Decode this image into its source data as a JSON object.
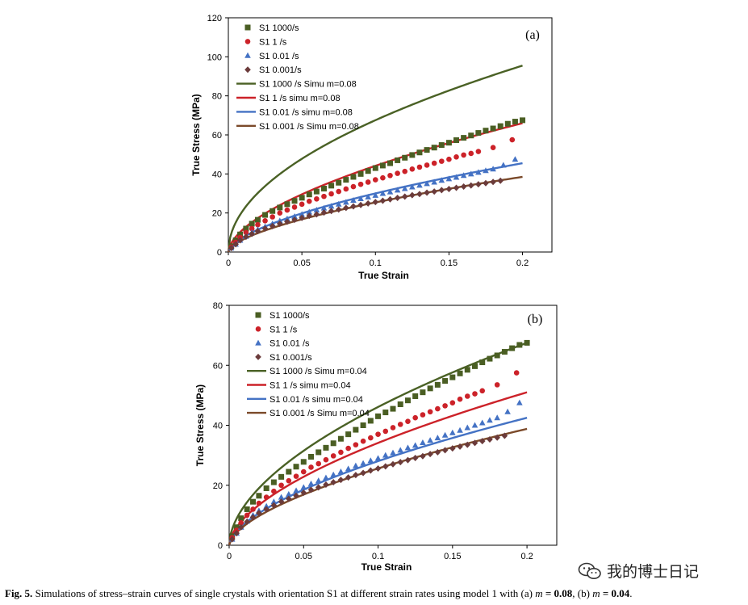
{
  "figure": {
    "caption_label": "Fig. 5.",
    "caption_text": "Simulations of stress–strain curves of single crystals with orientation S1 at different strain rates using model 1 with (a) ",
    "caption_m": "m",
    "caption_eq_a": " = 0.08",
    "caption_mid": ", (b) ",
    "caption_eq_b": " = 0.04",
    "caption_end": ".",
    "watermark": "我的博士日记"
  },
  "colors": {
    "s1000": "#4a5e23",
    "s1": "#cc2229",
    "s001": "#4472c4",
    "s0001": "#6b3b3b",
    "sim1000": "#4a6125",
    "sim1": "#cc2229",
    "sim001": "#4472c4",
    "sim0001": "#7b4a2a"
  },
  "chart_data": [
    {
      "type": "scatter",
      "panel_label": "(a)",
      "xlabel": "True Strain",
      "ylabel": "True Stress (MPa)",
      "xlim": [
        0,
        0.22
      ],
      "ylim": [
        0,
        120
      ],
      "xticks": [
        0,
        0.05,
        0.1,
        0.15,
        0.2
      ],
      "xtick_labels": [
        "0",
        "0.05",
        "0.1",
        "0.15",
        "0.2"
      ],
      "yticks": [
        0,
        20,
        40,
        60,
        80,
        100,
        120
      ],
      "ytick_labels": [
        "0",
        "20",
        "40",
        "60",
        "80",
        "100",
        "120"
      ],
      "legend_position": "top-left",
      "series": [
        {
          "name": "S1 1000/s",
          "kind": "marker",
          "marker": "square",
          "color_key": "s1000",
          "x": [
            0.002,
            0.005,
            0.008,
            0.012,
            0.016,
            0.02,
            0.025,
            0.03,
            0.035,
            0.04,
            0.045,
            0.05,
            0.055,
            0.06,
            0.065,
            0.07,
            0.075,
            0.08,
            0.085,
            0.09,
            0.095,
            0.1,
            0.105,
            0.11,
            0.115,
            0.12,
            0.125,
            0.13,
            0.135,
            0.14,
            0.145,
            0.15,
            0.155,
            0.16,
            0.165,
            0.17,
            0.175,
            0.18,
            0.185,
            0.19,
            0.195,
            0.2
          ],
          "y": [
            3,
            6,
            9,
            12,
            14.5,
            16.5,
            19,
            21,
            22.8,
            24.5,
            26.2,
            27.8,
            29.5,
            31,
            32.5,
            34,
            35.5,
            37,
            38.5,
            40,
            41.5,
            43,
            44.3,
            45.5,
            47,
            48.3,
            49.7,
            51,
            52.3,
            53.5,
            54.8,
            56,
            57.3,
            58.5,
            59.7,
            61,
            62.2,
            63.3,
            64.5,
            65.7,
            66.8,
            67.5
          ]
        },
        {
          "name": "S1 1 /s",
          "kind": "marker",
          "marker": "circle",
          "color_key": "s1",
          "x": [
            0.002,
            0.005,
            0.008,
            0.012,
            0.016,
            0.02,
            0.025,
            0.03,
            0.035,
            0.04,
            0.045,
            0.05,
            0.055,
            0.06,
            0.065,
            0.07,
            0.075,
            0.08,
            0.085,
            0.09,
            0.095,
            0.1,
            0.105,
            0.11,
            0.115,
            0.12,
            0.125,
            0.13,
            0.135,
            0.14,
            0.145,
            0.15,
            0.155,
            0.16,
            0.165,
            0.17,
            0.18,
            0.193
          ],
          "y": [
            2.5,
            5,
            7.5,
            10,
            12,
            14,
            16,
            18,
            20,
            21.5,
            23,
            24.5,
            26,
            27.2,
            28.5,
            29.8,
            31,
            32.3,
            33.5,
            34.7,
            35.8,
            37,
            38,
            39.2,
            40.3,
            41.3,
            42.5,
            43.5,
            44.5,
            45.5,
            46.5,
            47.5,
            48.7,
            49.7,
            50.5,
            51.5,
            53.5,
            57.5
          ]
        },
        {
          "name": "S1 0.01 /s",
          "kind": "marker",
          "marker": "triangle",
          "color_key": "s001",
          "x": [
            0.002,
            0.005,
            0.008,
            0.012,
            0.016,
            0.02,
            0.025,
            0.03,
            0.035,
            0.04,
            0.045,
            0.05,
            0.055,
            0.06,
            0.065,
            0.07,
            0.075,
            0.08,
            0.085,
            0.09,
            0.095,
            0.1,
            0.105,
            0.11,
            0.115,
            0.12,
            0.125,
            0.13,
            0.135,
            0.14,
            0.145,
            0.15,
            0.155,
            0.16,
            0.165,
            0.17,
            0.175,
            0.18,
            0.187,
            0.195
          ],
          "y": [
            2,
            4,
            6,
            8,
            10,
            11.5,
            13,
            14.5,
            16,
            17,
            18.2,
            19.3,
            20.5,
            21.5,
            22.5,
            23.5,
            24.5,
            25.5,
            26.5,
            27.3,
            28.2,
            29,
            30,
            30.8,
            31.7,
            32.5,
            33.3,
            34.2,
            35,
            35.8,
            36.7,
            37.5,
            38.3,
            39.2,
            40,
            40.8,
            41.7,
            42.5,
            44.5,
            47.5
          ]
        },
        {
          "name": "S1 0.001/s",
          "kind": "marker",
          "marker": "diamond",
          "color_key": "s0001",
          "x": [
            0.002,
            0.005,
            0.008,
            0.012,
            0.016,
            0.02,
            0.025,
            0.03,
            0.035,
            0.04,
            0.045,
            0.05,
            0.055,
            0.06,
            0.065,
            0.07,
            0.075,
            0.08,
            0.085,
            0.09,
            0.095,
            0.1,
            0.105,
            0.11,
            0.115,
            0.12,
            0.125,
            0.13,
            0.135,
            0.14,
            0.145,
            0.15,
            0.155,
            0.16,
            0.165,
            0.17,
            0.175,
            0.18,
            0.185
          ],
          "y": [
            2,
            4,
            6,
            7.8,
            9.3,
            10.7,
            12,
            13.3,
            14.5,
            15.5,
            16.5,
            17.5,
            18.5,
            19.3,
            20.2,
            21,
            21.8,
            22.6,
            23.4,
            24.1,
            24.9,
            25.6,
            26.3,
            27,
            27.7,
            28.4,
            29.1,
            29.7,
            30.4,
            31,
            31.7,
            32.3,
            32.9,
            33.5,
            34.1,
            34.7,
            35.3,
            35.9,
            36.5
          ]
        },
        {
          "name": "S1 1000 /s Simu m=0.08",
          "kind": "line",
          "color_key": "sim1000",
          "xmax": 0.2,
          "y_end": 95.5,
          "n": 0.5
        },
        {
          "name": "S1 1 /s simu m=0.08",
          "kind": "line",
          "color_key": "sim1",
          "xmax": 0.2,
          "y_end": 66.0,
          "n": 0.58
        },
        {
          "name": "S1 0.01 /s simu m=0.08",
          "kind": "line",
          "color_key": "sim001",
          "xmax": 0.2,
          "y_end": 45.5,
          "n": 0.6
        },
        {
          "name": "S1 0.001 /s Simu m=0.08",
          "kind": "line",
          "color_key": "sim0001",
          "xmax": 0.2,
          "y_end": 38.5,
          "n": 0.6
        }
      ]
    },
    {
      "type": "scatter",
      "panel_label": "(b)",
      "xlabel": "True Strain",
      "ylabel": "True Stress (MPa)",
      "xlim": [
        0,
        0.22
      ],
      "ylim": [
        0,
        80
      ],
      "xticks": [
        0,
        0.05,
        0.1,
        0.15,
        0.2
      ],
      "xtick_labels": [
        "0",
        "0.05",
        "0.1",
        "0.15",
        "0.2"
      ],
      "yticks": [
        0,
        20,
        40,
        60,
        80
      ],
      "ytick_labels": [
        "0",
        "20",
        "40",
        "60",
        "80"
      ],
      "legend_position": "top-left",
      "series": [
        {
          "name": "S1 1000/s",
          "kind": "marker",
          "marker": "square",
          "color_key": "s1000",
          "x": [
            0.002,
            0.005,
            0.008,
            0.012,
            0.016,
            0.02,
            0.025,
            0.03,
            0.035,
            0.04,
            0.045,
            0.05,
            0.055,
            0.06,
            0.065,
            0.07,
            0.075,
            0.08,
            0.085,
            0.09,
            0.095,
            0.1,
            0.105,
            0.11,
            0.115,
            0.12,
            0.125,
            0.13,
            0.135,
            0.14,
            0.145,
            0.15,
            0.155,
            0.16,
            0.165,
            0.17,
            0.175,
            0.18,
            0.185,
            0.19,
            0.195,
            0.2
          ],
          "y": [
            3,
            6,
            9,
            12,
            14.5,
            16.5,
            19,
            21,
            22.8,
            24.5,
            26.2,
            27.8,
            29.5,
            31,
            32.5,
            34,
            35.5,
            37,
            38.5,
            40,
            41.5,
            43,
            44.3,
            45.5,
            47,
            48.3,
            49.7,
            51,
            52.3,
            53.5,
            54.8,
            56,
            57.3,
            58.5,
            59.7,
            61,
            62.2,
            63.3,
            64.5,
            65.7,
            66.8,
            67.5
          ]
        },
        {
          "name": "S1 1 /s",
          "kind": "marker",
          "marker": "circle",
          "color_key": "s1",
          "x": [
            0.002,
            0.005,
            0.008,
            0.012,
            0.016,
            0.02,
            0.025,
            0.03,
            0.035,
            0.04,
            0.045,
            0.05,
            0.055,
            0.06,
            0.065,
            0.07,
            0.075,
            0.08,
            0.085,
            0.09,
            0.095,
            0.1,
            0.105,
            0.11,
            0.115,
            0.12,
            0.125,
            0.13,
            0.135,
            0.14,
            0.145,
            0.15,
            0.155,
            0.16,
            0.165,
            0.17,
            0.18,
            0.193
          ],
          "y": [
            2.5,
            5,
            7.5,
            10,
            12,
            14,
            16,
            18,
            20,
            21.5,
            23,
            24.5,
            26,
            27.2,
            28.5,
            29.8,
            31,
            32.3,
            33.5,
            34.7,
            35.8,
            37,
            38,
            39.2,
            40.3,
            41.3,
            42.5,
            43.5,
            44.5,
            45.5,
            46.5,
            47.5,
            48.7,
            49.7,
            50.5,
            51.5,
            53.5,
            57.5
          ]
        },
        {
          "name": "S1 0.01 /s",
          "kind": "marker",
          "marker": "triangle",
          "color_key": "s001",
          "x": [
            0.002,
            0.005,
            0.008,
            0.012,
            0.016,
            0.02,
            0.025,
            0.03,
            0.035,
            0.04,
            0.045,
            0.05,
            0.055,
            0.06,
            0.065,
            0.07,
            0.075,
            0.08,
            0.085,
            0.09,
            0.095,
            0.1,
            0.105,
            0.11,
            0.115,
            0.12,
            0.125,
            0.13,
            0.135,
            0.14,
            0.145,
            0.15,
            0.155,
            0.16,
            0.165,
            0.17,
            0.175,
            0.18,
            0.187,
            0.195
          ],
          "y": [
            2,
            4,
            6,
            8,
            10,
            11.5,
            13,
            14.5,
            16,
            17,
            18.2,
            19.3,
            20.5,
            21.5,
            22.5,
            23.5,
            24.5,
            25.5,
            26.5,
            27.3,
            28.2,
            29,
            30,
            30.8,
            31.7,
            32.5,
            33.3,
            34.2,
            35,
            35.8,
            36.7,
            37.5,
            38.3,
            39.2,
            40,
            40.8,
            41.7,
            42.5,
            44.5,
            47.5
          ]
        },
        {
          "name": "S1 0.001/s",
          "kind": "marker",
          "marker": "diamond",
          "color_key": "s0001",
          "x": [
            0.002,
            0.005,
            0.008,
            0.012,
            0.016,
            0.02,
            0.025,
            0.03,
            0.035,
            0.04,
            0.045,
            0.05,
            0.055,
            0.06,
            0.065,
            0.07,
            0.075,
            0.08,
            0.085,
            0.09,
            0.095,
            0.1,
            0.105,
            0.11,
            0.115,
            0.12,
            0.125,
            0.13,
            0.135,
            0.14,
            0.145,
            0.15,
            0.155,
            0.16,
            0.165,
            0.17,
            0.175,
            0.18,
            0.185
          ],
          "y": [
            2,
            4,
            6,
            7.8,
            9.3,
            10.7,
            12,
            13.3,
            14.5,
            15.5,
            16.5,
            17.5,
            18.5,
            19.3,
            20.2,
            21,
            21.8,
            22.6,
            23.4,
            24.1,
            24.9,
            25.6,
            26.3,
            27,
            27.7,
            28.4,
            29.1,
            29.7,
            30.4,
            31,
            31.7,
            32.3,
            32.9,
            33.5,
            34.1,
            34.7,
            35.3,
            35.9,
            36.5
          ]
        },
        {
          "name": "S1 1000 /s Simu m=0.04",
          "kind": "line",
          "color_key": "sim1000",
          "xmax": 0.2,
          "y_end": 67.5,
          "n": 0.55
        },
        {
          "name": "S1 1 /s simu m=0.04",
          "kind": "line",
          "color_key": "sim1",
          "xmax": 0.2,
          "y_end": 51.0,
          "n": 0.58
        },
        {
          "name": "S1 0.01 /s simu m=0.04",
          "kind": "line",
          "color_key": "sim001",
          "xmax": 0.2,
          "y_end": 42.5,
          "n": 0.6
        },
        {
          "name": "S1 0.001 /s Simu m=0.04",
          "kind": "line",
          "color_key": "sim0001",
          "xmax": 0.2,
          "y_end": 38.8,
          "n": 0.6
        }
      ]
    }
  ]
}
